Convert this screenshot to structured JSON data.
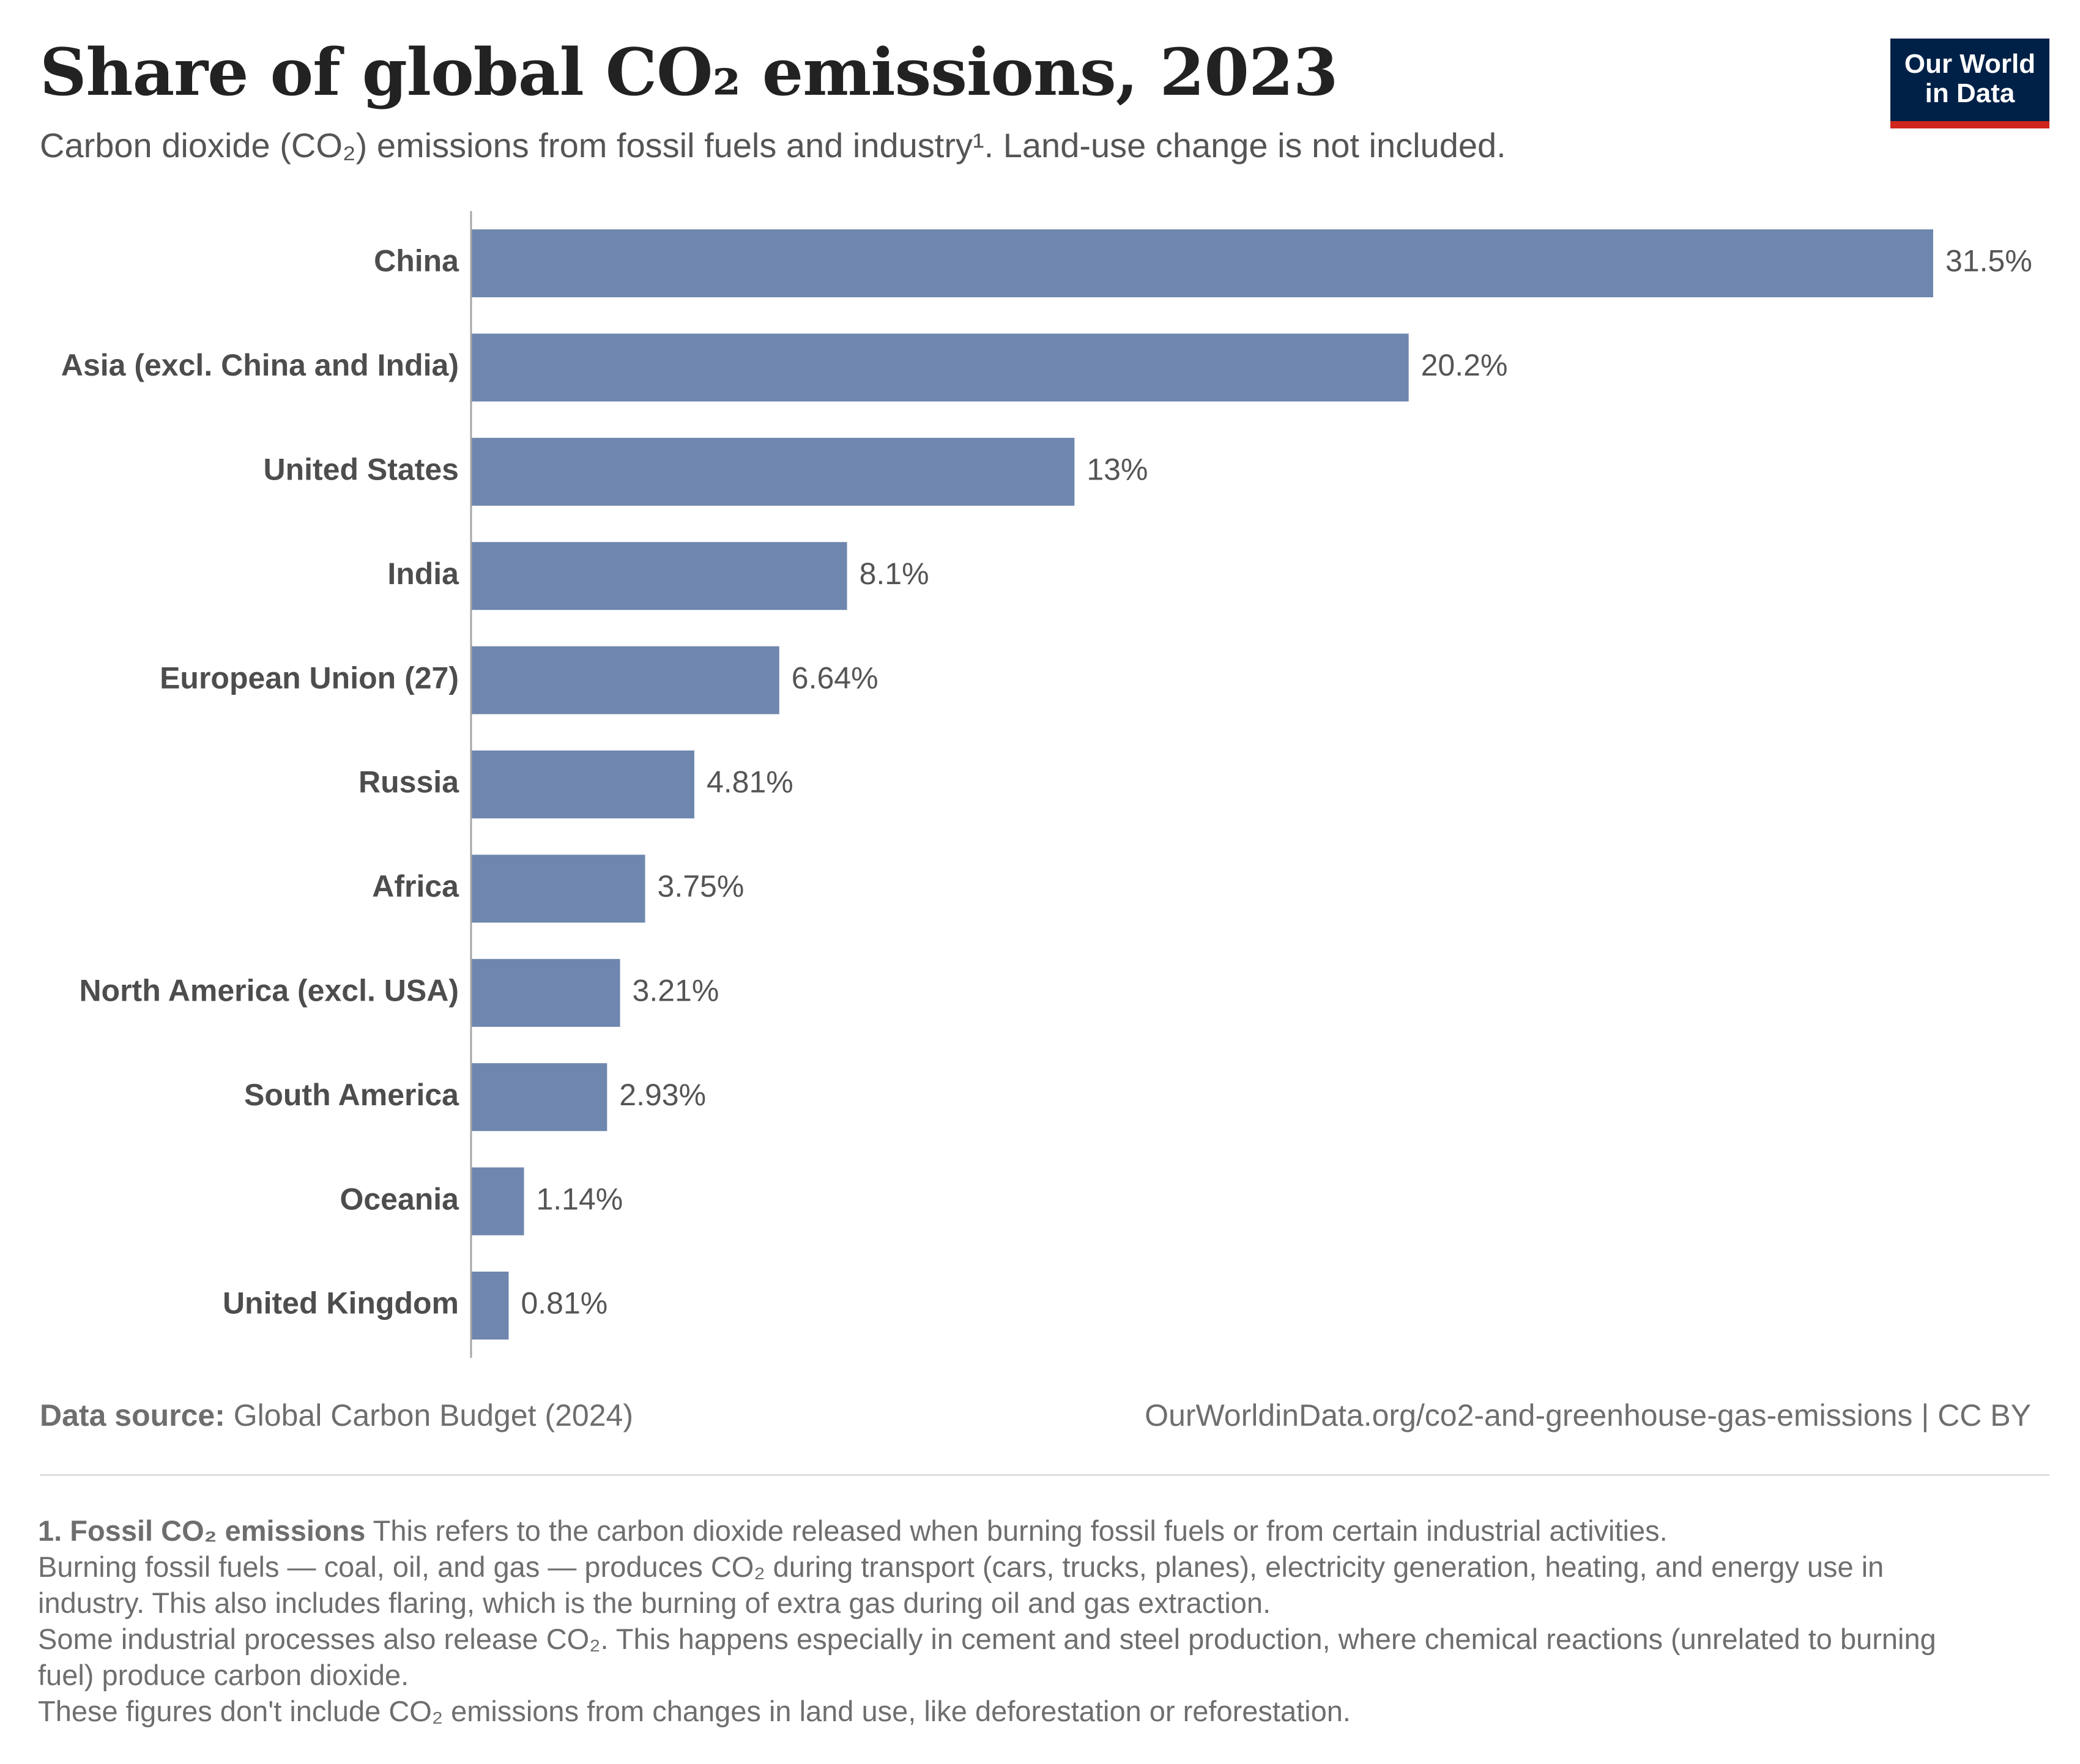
{
  "header": {
    "title": "Share of global CO₂ emissions, 2023",
    "subtitle": "Carbon dioxide (CO₂) emissions from fossil fuels and industry¹. Land-use change is not included."
  },
  "logo": {
    "line1": "Our World",
    "line2": "in Data",
    "bg_color": "#002147",
    "accent_color": "#ce261e"
  },
  "chart_data": {
    "type": "bar",
    "orientation": "horizontal",
    "categories": [
      "China",
      "Asia (excl. China and India)",
      "United States",
      "India",
      "European Union (27)",
      "Russia",
      "Africa",
      "North America (excl. USA)",
      "South America",
      "Oceania",
      "United Kingdom"
    ],
    "values": [
      31.5,
      20.2,
      13,
      8.1,
      6.64,
      4.81,
      3.75,
      3.21,
      2.93,
      1.14,
      0.81
    ],
    "value_labels": [
      "31.5%",
      "20.2%",
      "13%",
      "8.1%",
      "6.64%",
      "4.81%",
      "3.75%",
      "3.21%",
      "2.93%",
      "1.14%",
      "0.81%"
    ],
    "unit": "%",
    "xlim": [
      0,
      31.5
    ],
    "bar_color": "#6f87ae",
    "grid": false
  },
  "footer": {
    "source_label": "Data source:",
    "source_text": " Global Carbon Budget (2024)",
    "url_text": "OurWorldinData.org/co2-and-greenhouse-gas-emissions | CC BY"
  },
  "notes": {
    "heading": "1. Fossil CO₂ emissions",
    "line1": " This refers to the carbon dioxide released when burning fossil fuels or from certain industrial activities.",
    "line2": "Burning fossil fuels — coal, oil, and gas — produces CO₂ during transport (cars, trucks, planes), electricity generation, heating, and energy use in industry. This also includes flaring, which is the burning of extra gas during oil and gas extraction.",
    "line3": "Some industrial processes also release CO₂. This happens especially in cement and steel production, where chemical reactions (unrelated to burning fuel) produce carbon dioxide.",
    "line4": "These figures don't include CO₂ emissions from changes in land use, like deforestation or reforestation."
  }
}
